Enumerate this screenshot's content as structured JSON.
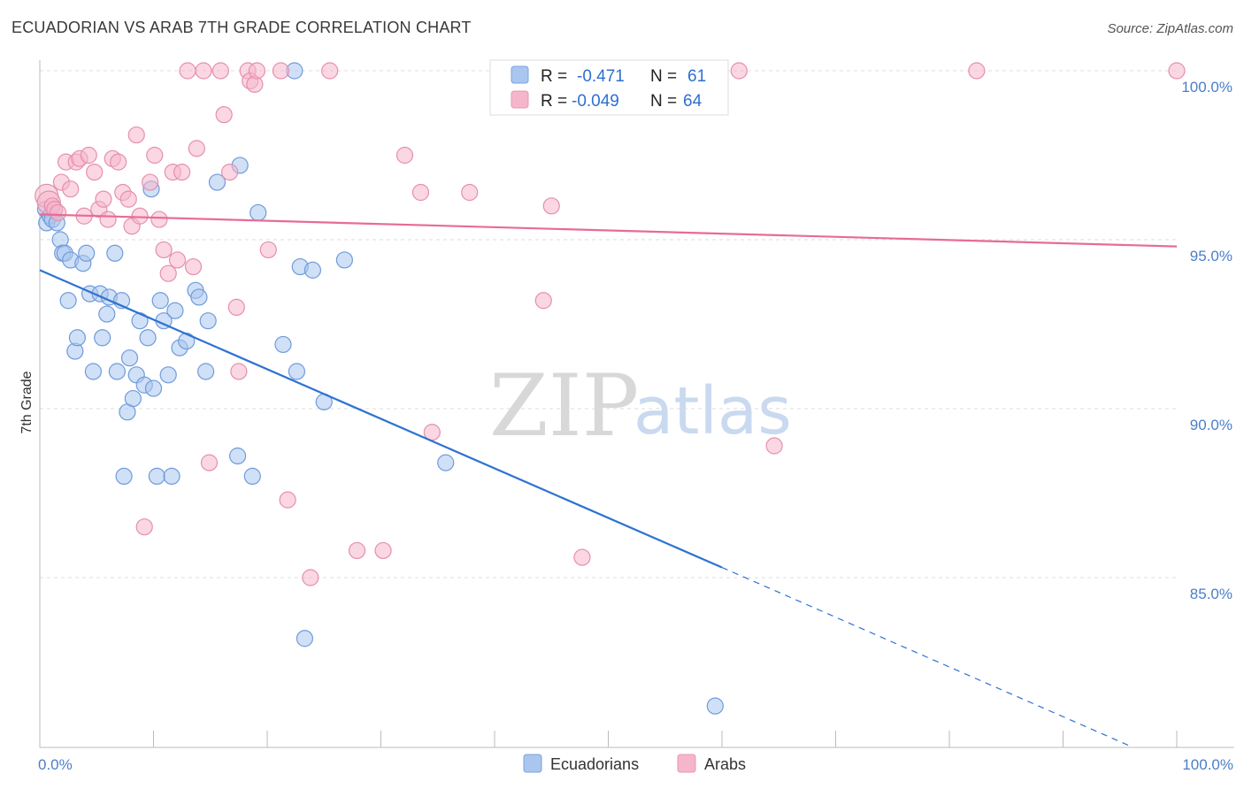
{
  "header": {
    "title": "ECUADORIAN VS ARAB 7TH GRADE CORRELATION CHART",
    "source": "Source: ZipAtlas.com"
  },
  "watermark": {
    "zip": "ZIP",
    "atlas": "atlas"
  },
  "colors": {
    "blue": "#2e72d2",
    "blue_fill": "#a9c6ee",
    "pink": "#e86b96",
    "pink_fill": "#f5b6cb",
    "grid": "#dcdcdc",
    "tick_label": "#4a7fc8"
  },
  "legend": {
    "rows": [
      {
        "r_label": "R = ",
        "r_value": "-0.471",
        "n_label": "N = ",
        "n_value": "61"
      },
      {
        "r_label": "R = ",
        "r_value": "-0.049",
        "n_label": "N = ",
        "n_value": "64"
      }
    ]
  },
  "chart_data": {
    "type": "scatter",
    "title": "ECUADORIAN VS ARAB 7TH GRADE CORRELATION CHART",
    "xlabel": "",
    "ylabel": "7th Grade",
    "xlim": [
      0,
      100
    ],
    "ylim": [
      80.0,
      100.8
    ],
    "x_tick_labels": [
      "0.0%",
      "100.0%"
    ],
    "y_ticks": [
      85,
      90,
      95,
      100
    ],
    "y_tick_labels": [
      "85.0%",
      "90.0%",
      "95.0%",
      "100.0%"
    ],
    "grid": true,
    "legend_position": "top-center",
    "series": [
      {
        "name": "Ecuadorians",
        "color": "#2e72d2",
        "r": -0.471,
        "n": 61,
        "trend": {
          "x0": 0,
          "y0": 94.1,
          "x1": 60,
          "y1": 85.3,
          "dash_to_x": 96,
          "dash_to_y": 80.0
        },
        "points": [
          [
            0.5,
            95.9
          ],
          [
            0.6,
            95.5
          ],
          [
            0.9,
            95.7
          ],
          [
            1.1,
            95.6
          ],
          [
            1.5,
            95.5
          ],
          [
            1.8,
            95.0
          ],
          [
            2.0,
            94.6
          ],
          [
            2.2,
            94.6
          ],
          [
            2.5,
            93.2
          ],
          [
            2.7,
            94.4
          ],
          [
            3.1,
            91.7
          ],
          [
            3.3,
            92.1
          ],
          [
            3.8,
            94.3
          ],
          [
            4.1,
            94.6
          ],
          [
            4.4,
            93.4
          ],
          [
            4.7,
            91.1
          ],
          [
            5.3,
            93.4
          ],
          [
            5.5,
            92.1
          ],
          [
            5.9,
            92.8
          ],
          [
            6.1,
            93.3
          ],
          [
            6.6,
            94.6
          ],
          [
            6.8,
            91.1
          ],
          [
            7.2,
            93.2
          ],
          [
            7.4,
            88.0
          ],
          [
            7.7,
            89.9
          ],
          [
            7.9,
            91.5
          ],
          [
            8.2,
            90.3
          ],
          [
            8.5,
            91.0
          ],
          [
            8.8,
            92.6
          ],
          [
            9.2,
            90.7
          ],
          [
            9.5,
            92.1
          ],
          [
            9.8,
            96.5
          ],
          [
            10.0,
            90.6
          ],
          [
            10.3,
            88.0
          ],
          [
            10.6,
            93.2
          ],
          [
            10.9,
            92.6
          ],
          [
            11.3,
            91.0
          ],
          [
            11.6,
            88.0
          ],
          [
            11.9,
            92.9
          ],
          [
            12.3,
            91.8
          ],
          [
            12.9,
            92.0
          ],
          [
            13.7,
            93.5
          ],
          [
            14.0,
            93.3
          ],
          [
            14.6,
            91.1
          ],
          [
            14.8,
            92.6
          ],
          [
            15.6,
            96.7
          ],
          [
            17.4,
            88.6
          ],
          [
            17.6,
            97.2
          ],
          [
            18.7,
            88.0
          ],
          [
            19.2,
            95.8
          ],
          [
            21.4,
            91.9
          ],
          [
            22.4,
            100.0
          ],
          [
            22.6,
            91.1
          ],
          [
            22.9,
            94.2
          ],
          [
            23.3,
            83.2
          ],
          [
            24.0,
            94.1
          ],
          [
            25.0,
            90.2
          ],
          [
            26.8,
            94.4
          ],
          [
            35.7,
            88.4
          ],
          [
            59.4,
            81.2
          ],
          [
            1.3,
            95.9
          ]
        ]
      },
      {
        "name": "Arabs",
        "color": "#e86b96",
        "r": -0.049,
        "n": 64,
        "trend": {
          "x0": 0,
          "y0": 95.75,
          "x1": 100,
          "y1": 94.8
        },
        "points": [
          [
            0.6,
            96.3
          ],
          [
            0.8,
            96.1
          ],
          [
            1.1,
            96.0
          ],
          [
            1.3,
            95.9
          ],
          [
            1.6,
            95.8
          ],
          [
            1.9,
            96.7
          ],
          [
            2.3,
            97.3
          ],
          [
            2.7,
            96.5
          ],
          [
            3.2,
            97.3
          ],
          [
            3.5,
            97.4
          ],
          [
            3.9,
            95.7
          ],
          [
            4.3,
            97.5
          ],
          [
            4.8,
            97.0
          ],
          [
            5.2,
            95.9
          ],
          [
            5.6,
            96.2
          ],
          [
            6.0,
            95.6
          ],
          [
            6.4,
            97.4
          ],
          [
            6.9,
            97.3
          ],
          [
            7.3,
            96.4
          ],
          [
            7.8,
            96.2
          ],
          [
            8.1,
            95.4
          ],
          [
            8.5,
            98.1
          ],
          [
            8.8,
            95.7
          ],
          [
            9.2,
            86.5
          ],
          [
            9.7,
            96.7
          ],
          [
            10.1,
            97.5
          ],
          [
            10.5,
            95.6
          ],
          [
            10.9,
            94.7
          ],
          [
            11.3,
            94.0
          ],
          [
            11.7,
            97.0
          ],
          [
            12.1,
            94.4
          ],
          [
            12.5,
            97.0
          ],
          [
            13.0,
            100.0
          ],
          [
            13.5,
            94.2
          ],
          [
            13.8,
            97.7
          ],
          [
            14.4,
            100.0
          ],
          [
            14.9,
            88.4
          ],
          [
            15.9,
            100.0
          ],
          [
            16.2,
            98.7
          ],
          [
            16.7,
            97.0
          ],
          [
            17.3,
            93.0
          ],
          [
            17.5,
            91.1
          ],
          [
            18.3,
            100.0
          ],
          [
            18.5,
            99.7
          ],
          [
            18.9,
            99.6
          ],
          [
            19.1,
            100.0
          ],
          [
            20.1,
            94.7
          ],
          [
            21.2,
            100.0
          ],
          [
            21.8,
            87.3
          ],
          [
            23.8,
            85.0
          ],
          [
            25.5,
            100.0
          ],
          [
            27.9,
            85.8
          ],
          [
            30.2,
            85.8
          ],
          [
            32.1,
            97.5
          ],
          [
            33.5,
            96.4
          ],
          [
            34.5,
            89.3
          ],
          [
            37.8,
            96.4
          ],
          [
            44.3,
            93.2
          ],
          [
            45.0,
            96.0
          ],
          [
            47.1,
            100.0
          ],
          [
            47.7,
            85.6
          ],
          [
            61.5,
            100.0
          ],
          [
            64.6,
            88.9
          ],
          [
            82.4,
            100.0
          ],
          [
            100.0,
            100.0
          ]
        ]
      }
    ]
  }
}
